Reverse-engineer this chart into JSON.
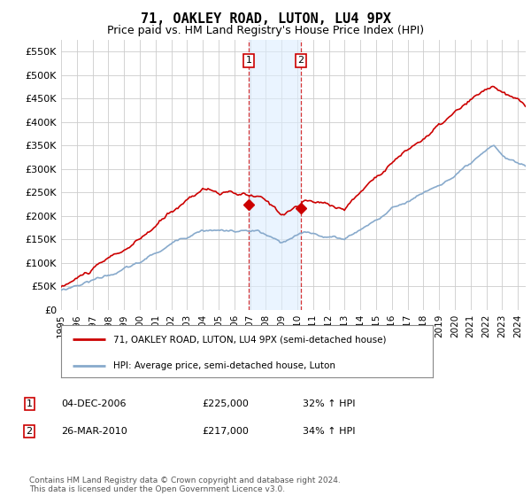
{
  "title": "71, OAKLEY ROAD, LUTON, LU4 9PX",
  "subtitle": "Price paid vs. HM Land Registry's House Price Index (HPI)",
  "title_fontsize": 11,
  "subtitle_fontsize": 9,
  "bg_color": "#ffffff",
  "grid_color": "#cccccc",
  "property_color": "#cc0000",
  "hpi_color": "#88aacc",
  "shade_color": "#ddeeff",
  "point1_x": 2006.92,
  "point2_x": 2010.23,
  "point1_y": 225000,
  "point2_y": 217000,
  "legend_property": "71, OAKLEY ROAD, LUTON, LU4 9PX (semi-detached house)",
  "legend_hpi": "HPI: Average price, semi-detached house, Luton",
  "table_rows": [
    {
      "num": "1",
      "date": "04-DEC-2006",
      "price": "£225,000",
      "hpi": "32% ↑ HPI"
    },
    {
      "num": "2",
      "date": "26-MAR-2010",
      "price": "£217,000",
      "hpi": "34% ↑ HPI"
    }
  ],
  "footer": "Contains HM Land Registry data © Crown copyright and database right 2024.\nThis data is licensed under the Open Government Licence v3.0.",
  "ylim": [
    0,
    575000
  ],
  "xlim": [
    1995.0,
    2024.5
  ],
  "yticks": [
    0,
    50000,
    100000,
    150000,
    200000,
    250000,
    300000,
    350000,
    400000,
    450000,
    500000,
    550000
  ],
  "xticks": [
    1995,
    1996,
    1997,
    1998,
    1999,
    2000,
    2001,
    2002,
    2003,
    2004,
    2005,
    2006,
    2007,
    2008,
    2009,
    2010,
    2011,
    2012,
    2013,
    2014,
    2015,
    2016,
    2017,
    2018,
    2019,
    2020,
    2021,
    2022,
    2023,
    2024
  ]
}
